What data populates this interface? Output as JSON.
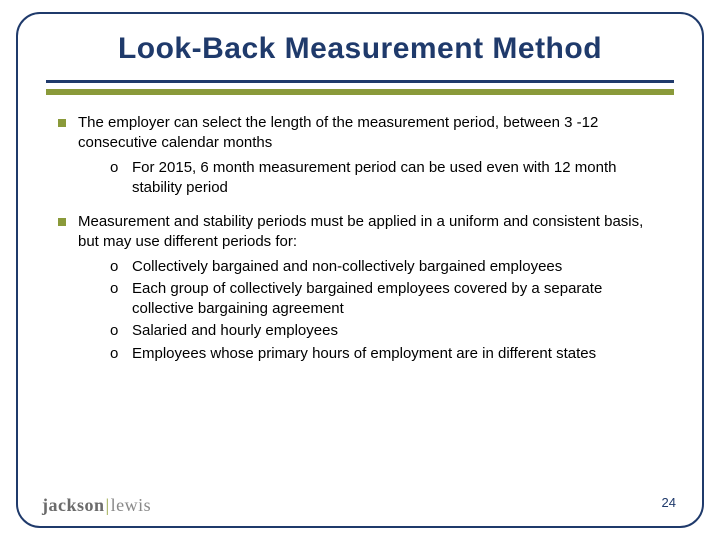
{
  "colors": {
    "frame_border": "#1f3a6b",
    "title_text": "#1f3a6b",
    "rule_dark": "#1f3a6b",
    "rule_olive": "#8a9a3a",
    "bullet_square": "#8a9a3a",
    "body_text": "#000000",
    "page_num": "#1f3a6b",
    "logo_gray": "#7a7a7a"
  },
  "title": "Look-Back Measurement Method",
  "bullets": [
    {
      "text": "The employer can select the length of the measurement period, between 3 -12 consecutive calendar months",
      "subs": [
        "For 2015, 6 month measurement period can be used even with 12 month stability period"
      ]
    },
    {
      "text": "Measurement and stability periods must be applied in a uniform and consistent basis, but may use different periods for:",
      "subs": [
        "Collectively bargained and non-collectively bargained employees",
        "Each group of collectively bargained employees covered by a separate collective bargaining agreement",
        "Salaried and hourly employees",
        "Employees whose primary hours of employment are in different states"
      ]
    }
  ],
  "page_number": "24",
  "logo": {
    "part1": "jackson",
    "part2": "lewis"
  }
}
